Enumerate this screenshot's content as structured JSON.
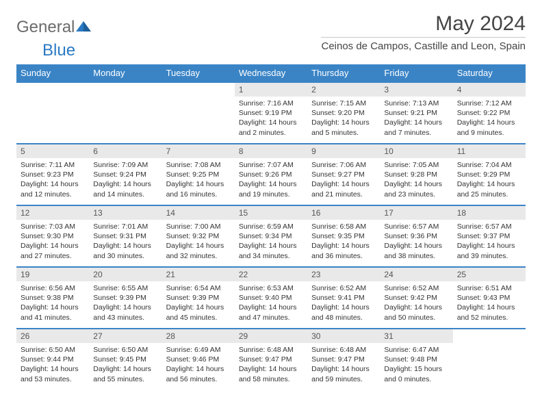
{
  "logo": {
    "general": "General",
    "blue": "Blue"
  },
  "title": "May 2024",
  "location": "Ceinos de Campos, Castille and Leon, Spain",
  "colors": {
    "header_bg": "#3a84c6",
    "header_fg": "#ffffff",
    "daynum_bg": "#e9e9e9",
    "row_border": "#3a84c6",
    "logo_blue": "#2a79c3",
    "logo_gray": "#6b6b6b"
  },
  "weekdays": [
    "Sunday",
    "Monday",
    "Tuesday",
    "Wednesday",
    "Thursday",
    "Friday",
    "Saturday"
  ],
  "weeks": [
    [
      null,
      null,
      null,
      {
        "n": "1",
        "sr": "7:16 AM",
        "ss": "9:19 PM",
        "dl": "14 hours and 2 minutes."
      },
      {
        "n": "2",
        "sr": "7:15 AM",
        "ss": "9:20 PM",
        "dl": "14 hours and 5 minutes."
      },
      {
        "n": "3",
        "sr": "7:13 AM",
        "ss": "9:21 PM",
        "dl": "14 hours and 7 minutes."
      },
      {
        "n": "4",
        "sr": "7:12 AM",
        "ss": "9:22 PM",
        "dl": "14 hours and 9 minutes."
      }
    ],
    [
      {
        "n": "5",
        "sr": "7:11 AM",
        "ss": "9:23 PM",
        "dl": "14 hours and 12 minutes."
      },
      {
        "n": "6",
        "sr": "7:09 AM",
        "ss": "9:24 PM",
        "dl": "14 hours and 14 minutes."
      },
      {
        "n": "7",
        "sr": "7:08 AM",
        "ss": "9:25 PM",
        "dl": "14 hours and 16 minutes."
      },
      {
        "n": "8",
        "sr": "7:07 AM",
        "ss": "9:26 PM",
        "dl": "14 hours and 19 minutes."
      },
      {
        "n": "9",
        "sr": "7:06 AM",
        "ss": "9:27 PM",
        "dl": "14 hours and 21 minutes."
      },
      {
        "n": "10",
        "sr": "7:05 AM",
        "ss": "9:28 PM",
        "dl": "14 hours and 23 minutes."
      },
      {
        "n": "11",
        "sr": "7:04 AM",
        "ss": "9:29 PM",
        "dl": "14 hours and 25 minutes."
      }
    ],
    [
      {
        "n": "12",
        "sr": "7:03 AM",
        "ss": "9:30 PM",
        "dl": "14 hours and 27 minutes."
      },
      {
        "n": "13",
        "sr": "7:01 AM",
        "ss": "9:31 PM",
        "dl": "14 hours and 30 minutes."
      },
      {
        "n": "14",
        "sr": "7:00 AM",
        "ss": "9:32 PM",
        "dl": "14 hours and 32 minutes."
      },
      {
        "n": "15",
        "sr": "6:59 AM",
        "ss": "9:34 PM",
        "dl": "14 hours and 34 minutes."
      },
      {
        "n": "16",
        "sr": "6:58 AM",
        "ss": "9:35 PM",
        "dl": "14 hours and 36 minutes."
      },
      {
        "n": "17",
        "sr": "6:57 AM",
        "ss": "9:36 PM",
        "dl": "14 hours and 38 minutes."
      },
      {
        "n": "18",
        "sr": "6:57 AM",
        "ss": "9:37 PM",
        "dl": "14 hours and 39 minutes."
      }
    ],
    [
      {
        "n": "19",
        "sr": "6:56 AM",
        "ss": "9:38 PM",
        "dl": "14 hours and 41 minutes."
      },
      {
        "n": "20",
        "sr": "6:55 AM",
        "ss": "9:39 PM",
        "dl": "14 hours and 43 minutes."
      },
      {
        "n": "21",
        "sr": "6:54 AM",
        "ss": "9:39 PM",
        "dl": "14 hours and 45 minutes."
      },
      {
        "n": "22",
        "sr": "6:53 AM",
        "ss": "9:40 PM",
        "dl": "14 hours and 47 minutes."
      },
      {
        "n": "23",
        "sr": "6:52 AM",
        "ss": "9:41 PM",
        "dl": "14 hours and 48 minutes."
      },
      {
        "n": "24",
        "sr": "6:52 AM",
        "ss": "9:42 PM",
        "dl": "14 hours and 50 minutes."
      },
      {
        "n": "25",
        "sr": "6:51 AM",
        "ss": "9:43 PM",
        "dl": "14 hours and 52 minutes."
      }
    ],
    [
      {
        "n": "26",
        "sr": "6:50 AM",
        "ss": "9:44 PM",
        "dl": "14 hours and 53 minutes."
      },
      {
        "n": "27",
        "sr": "6:50 AM",
        "ss": "9:45 PM",
        "dl": "14 hours and 55 minutes."
      },
      {
        "n": "28",
        "sr": "6:49 AM",
        "ss": "9:46 PM",
        "dl": "14 hours and 56 minutes."
      },
      {
        "n": "29",
        "sr": "6:48 AM",
        "ss": "9:47 PM",
        "dl": "14 hours and 58 minutes."
      },
      {
        "n": "30",
        "sr": "6:48 AM",
        "ss": "9:47 PM",
        "dl": "14 hours and 59 minutes."
      },
      {
        "n": "31",
        "sr": "6:47 AM",
        "ss": "9:48 PM",
        "dl": "15 hours and 0 minutes."
      },
      null
    ]
  ],
  "labels": {
    "sunrise": "Sunrise:",
    "sunset": "Sunset:",
    "daylight": "Daylight:"
  }
}
